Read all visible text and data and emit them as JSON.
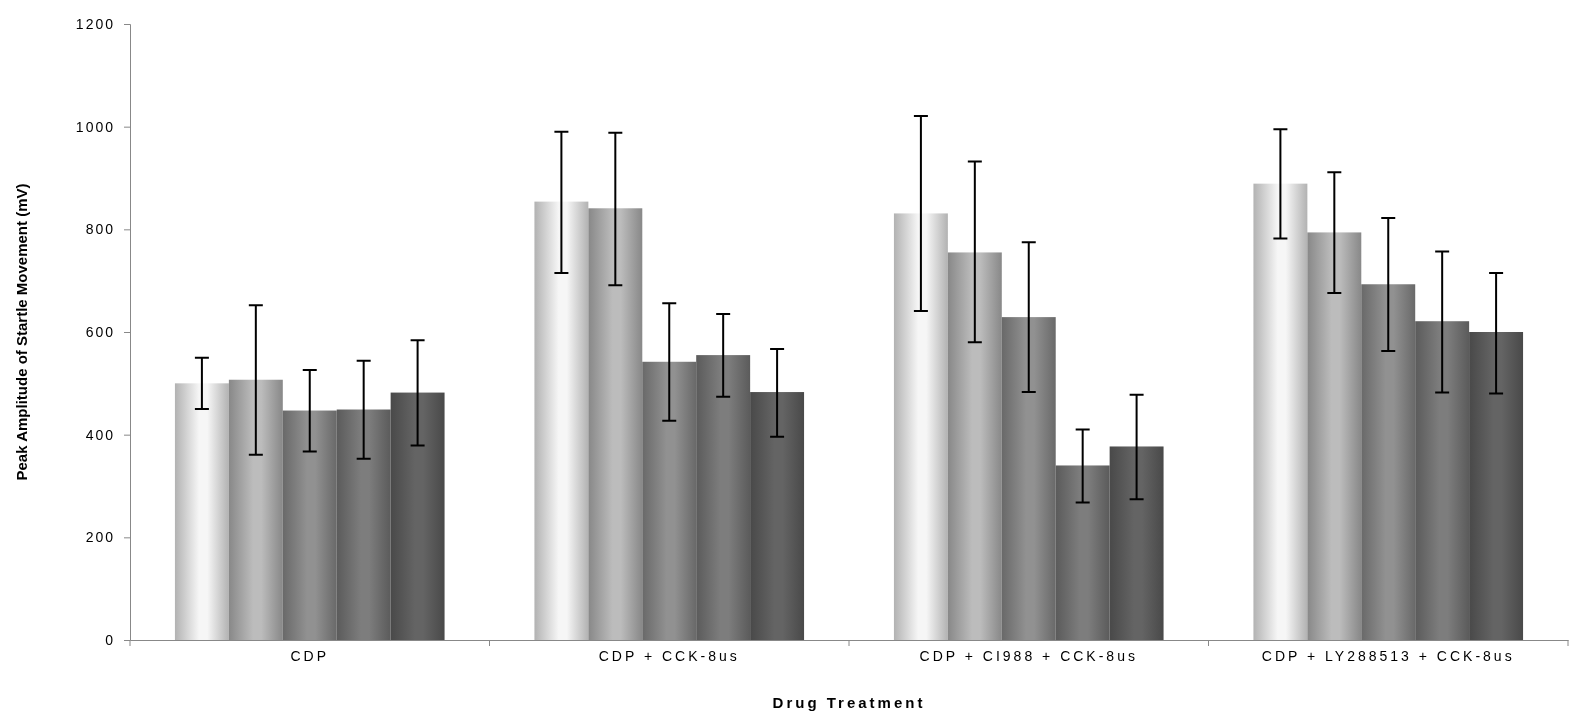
{
  "chart_data": {
    "type": "bar",
    "xlabel": "Drug Treatment",
    "ylabel": "Peak Amplitude of Startle Movement (mV)",
    "categories": [
      "CDP",
      "CDP + CCK-8us",
      "CDP + CI988 + CCK-8us",
      "CDP + LY288513 + CCK-8us"
    ],
    "ylim": [
      0,
      1200
    ],
    "yticks": [
      0,
      200,
      400,
      600,
      800,
      1000,
      1200
    ],
    "grid": false,
    "series": [
      {
        "color": "#f6f6f6",
        "values": [
          500,
          854,
          831,
          889
        ],
        "errors": [
          [
            450,
            550
          ],
          [
            715,
            990
          ],
          [
            641,
            1021
          ],
          [
            782,
            995
          ]
        ]
      },
      {
        "color": "#bcbcbc",
        "values": [
          507,
          841,
          755,
          794
        ],
        "errors": [
          [
            361,
            652
          ],
          [
            691,
            988
          ],
          [
            580,
            932
          ],
          [
            676,
            911
          ]
        ]
      },
      {
        "color": "#919191",
        "values": [
          447,
          542,
          629,
          693
        ],
        "errors": [
          [
            367,
            526
          ],
          [
            427,
            656
          ],
          [
            483,
            775
          ],
          [
            563,
            822
          ]
        ]
      },
      {
        "color": "#7d7d7d",
        "values": [
          449,
          555,
          340,
          621
        ],
        "errors": [
          [
            353,
            544
          ],
          [
            474,
            635
          ],
          [
            268,
            410
          ],
          [
            482,
            757
          ]
        ]
      },
      {
        "color": "#646464",
        "values": [
          482,
          483,
          377,
          600
        ],
        "errors": [
          [
            379,
            584
          ],
          [
            396,
            567
          ],
          [
            274,
            478
          ],
          [
            480,
            715
          ]
        ]
      }
    ]
  }
}
